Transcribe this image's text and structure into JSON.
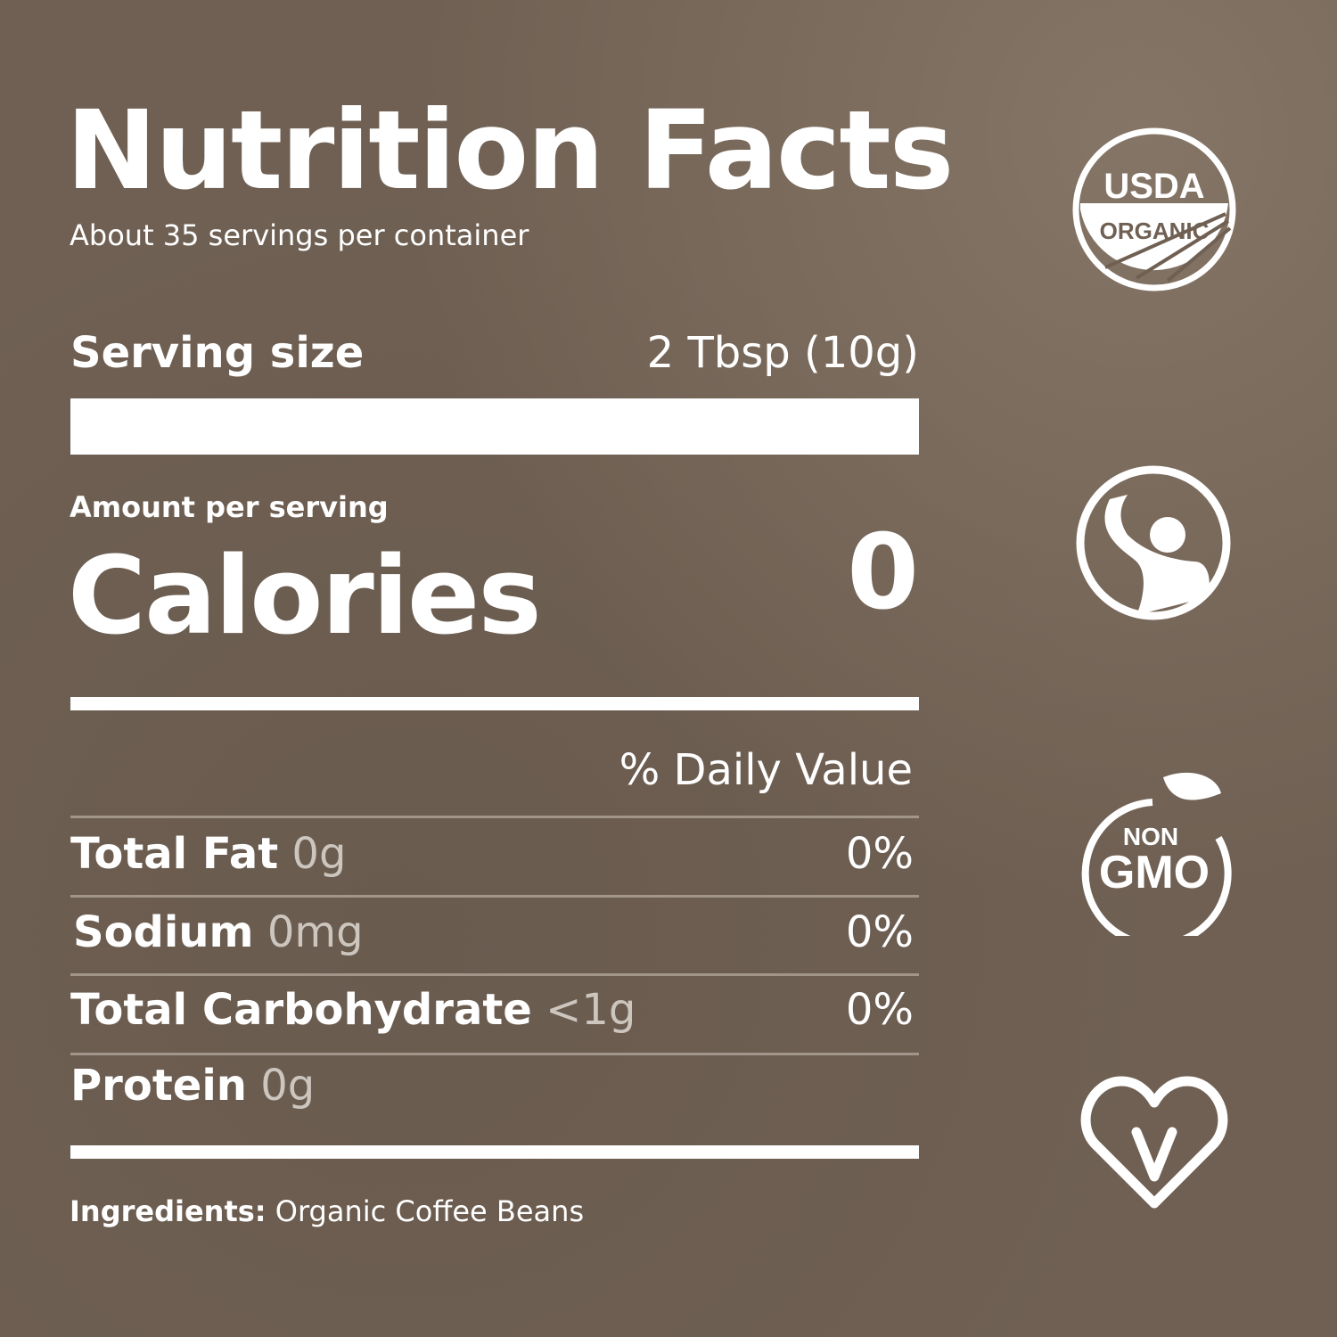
{
  "title": "Nutrition Facts",
  "servings_per_container": "About 35 servings per container",
  "serving_size": {
    "label": "Serving size",
    "value": "2 Tbsp (10g)"
  },
  "amount_per_serving": "Amount per serving",
  "calories": {
    "label": "Calories",
    "value": "0"
  },
  "daily_value_header": "% Daily Value",
  "nutrients": [
    {
      "name": "Total Fat",
      "amount": "0g",
      "dv": "0%"
    },
    {
      "name": "Sodium",
      "amount": "0mg",
      "dv": "0%"
    },
    {
      "name": "Total Carbohydrate",
      "amount": "<1g",
      "dv": "0%"
    },
    {
      "name": "Protein",
      "amount": "0g",
      "dv": ""
    }
  ],
  "ingredients": {
    "label": "Ingredients:",
    "value": "Organic Coffee Beans"
  },
  "badges": [
    {
      "icon": "usda-organic-icon",
      "text_top": "USDA",
      "text_bottom": "ORGANIC"
    },
    {
      "icon": "fair-trade-icon"
    },
    {
      "icon": "non-gmo-icon",
      "text_top": "NON",
      "text_bottom": "GMO"
    },
    {
      "icon": "vegan-heart-icon",
      "text": "V"
    }
  ],
  "colors": {
    "background": "#6f6053",
    "text": "#ffffff",
    "amount_text": "#cdc6be"
  }
}
